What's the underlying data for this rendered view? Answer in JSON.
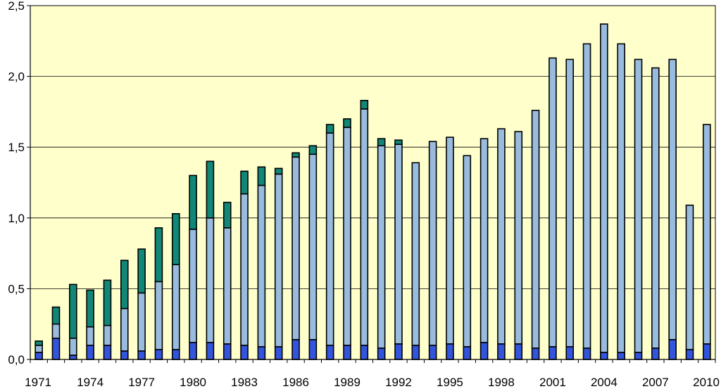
{
  "chart_data": {
    "type": "bar",
    "stacked": true,
    "title": "",
    "xlabel": "",
    "ylabel": "",
    "ylim": [
      0,
      2.5
    ],
    "y_ticks": [
      "0,0",
      "0,5",
      "1,0",
      "1,5",
      "2,0",
      "2,5"
    ],
    "y_tick_values": [
      0,
      0.5,
      1.0,
      1.5,
      2.0,
      2.5
    ],
    "grid": true,
    "legend": "none",
    "categories": [
      1971,
      1972,
      1973,
      1974,
      1975,
      1976,
      1977,
      1978,
      1979,
      1980,
      1981,
      1982,
      1983,
      1984,
      1985,
      1986,
      1987,
      1988,
      1989,
      1990,
      1991,
      1992,
      1993,
      1994,
      1995,
      1996,
      1997,
      1998,
      1999,
      2000,
      2001,
      2002,
      2003,
      2004,
      2005,
      2006,
      2007,
      2008,
      2009,
      2010
    ],
    "x_tick_labels": [
      "1971",
      "1974",
      "1977",
      "1980",
      "1983",
      "1986",
      "1989",
      "1992",
      "1995",
      "1998",
      "2001",
      "2004",
      "2007",
      "2010"
    ],
    "x_tick_years": [
      1971,
      1974,
      1977,
      1980,
      1983,
      1986,
      1989,
      1992,
      1995,
      1998,
      2001,
      2004,
      2007,
      2010
    ],
    "colors": {
      "plot_background": "#ffffcc",
      "bottom_segment": "#3355dd",
      "middle_segment": "#99bbdd",
      "top_segment": "#118877",
      "gridline": "#000000",
      "bar_outline": "#000000"
    },
    "series": [
      {
        "color": "#3355dd",
        "values": [
          0.05,
          0.15,
          0.03,
          0.1,
          0.1,
          0.06,
          0.06,
          0.07,
          0.07,
          0.12,
          0.12,
          0.11,
          0.1,
          0.09,
          0.09,
          0.14,
          0.14,
          0.1,
          0.1,
          0.1,
          0.08,
          0.11,
          0.1,
          0.1,
          0.11,
          0.09,
          0.12,
          0.11,
          0.11,
          0.08,
          0.09,
          0.09,
          0.08,
          0.05,
          0.05,
          0.05,
          0.08,
          0.14,
          0.07,
          0.11
        ]
      },
      {
        "color": "#99bbdd",
        "values": [
          0.05,
          0.1,
          0.12,
          0.13,
          0.14,
          0.3,
          0.41,
          0.48,
          0.6,
          0.8,
          0.88,
          0.82,
          1.07,
          1.14,
          1.22,
          1.29,
          1.31,
          1.5,
          1.54,
          1.67,
          1.43,
          1.41,
          1.29,
          1.44,
          1.46,
          1.35,
          1.44,
          1.52,
          1.5,
          1.68,
          2.04,
          2.03,
          2.15,
          2.32,
          2.18,
          2.07,
          1.98,
          1.98,
          1.02,
          1.55
        ]
      },
      {
        "color": "#118877",
        "values": [
          0.03,
          0.12,
          0.38,
          0.26,
          0.32,
          0.34,
          0.31,
          0.38,
          0.36,
          0.38,
          0.4,
          0.18,
          0.16,
          0.13,
          0.04,
          0.03,
          0.06,
          0.06,
          0.06,
          0.06,
          0.05,
          0.03,
          0,
          0,
          0,
          0,
          0,
          0,
          0,
          0,
          0,
          0,
          0,
          0,
          0,
          0,
          0,
          0,
          0,
          0
        ]
      }
    ]
  }
}
